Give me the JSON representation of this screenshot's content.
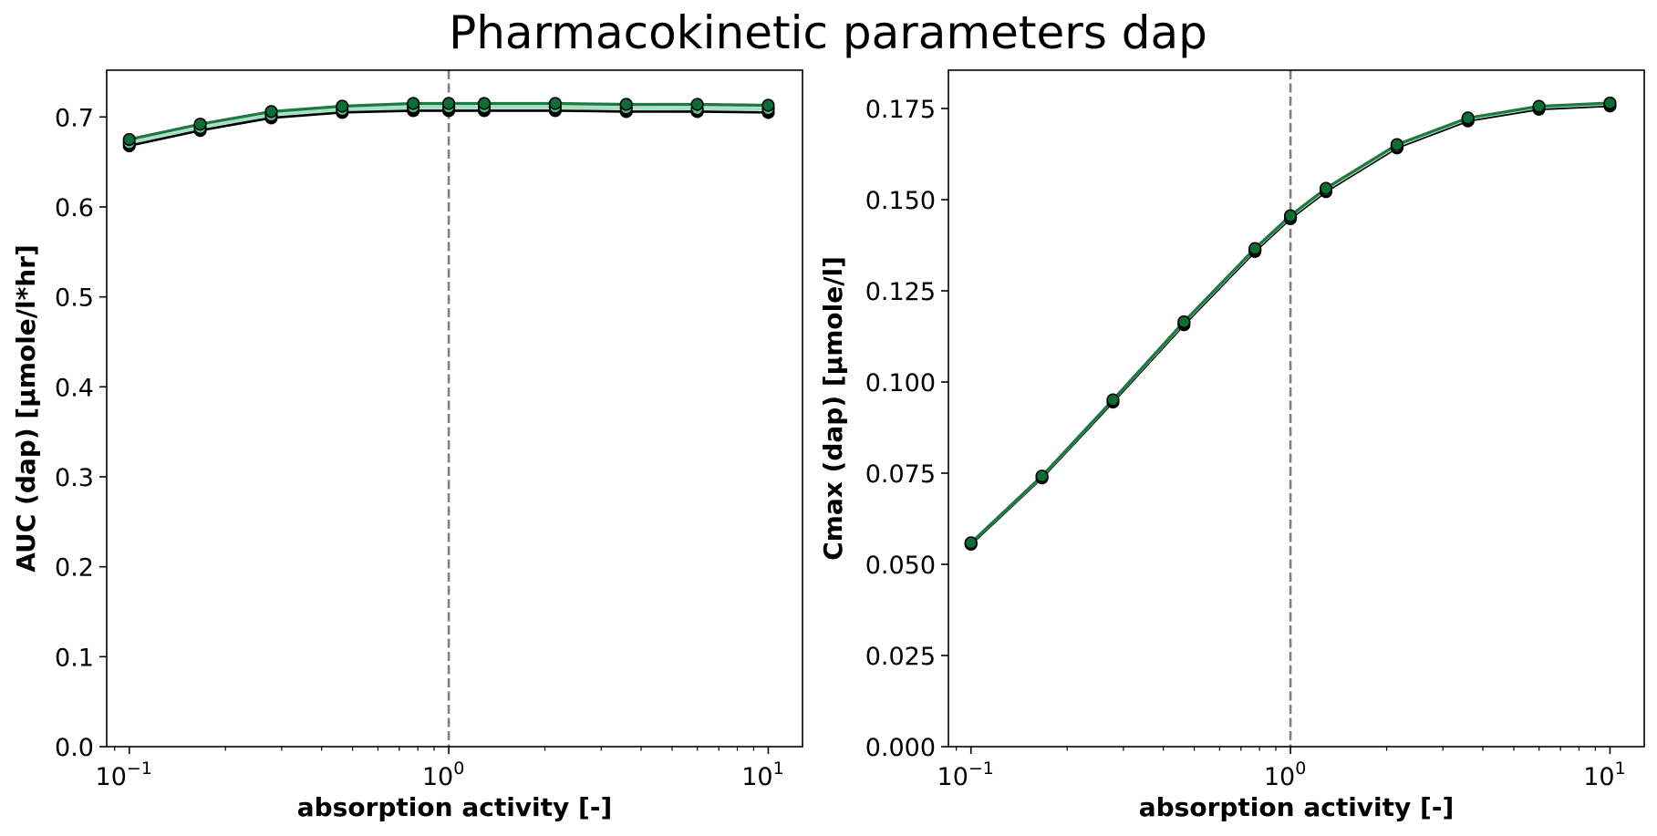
{
  "figure": {
    "title": "Pharmacokinetic parameters dap"
  },
  "chart_data": [
    {
      "type": "line",
      "xscale": "log",
      "x": [
        0.1,
        0.1668,
        0.2783,
        0.4642,
        0.7743,
        1.0,
        1.2915,
        2.1544,
        3.5938,
        5.9948,
        10.0
      ],
      "xlim": [
        0.085,
        12.8
      ],
      "xticks": [
        0.1,
        1,
        10
      ],
      "xtick_labels": [
        {
          "base": "10",
          "exp": "−1"
        },
        {
          "base": "10",
          "exp": "0"
        },
        {
          "base": "10",
          "exp": "1"
        }
      ],
      "ylim": [
        0.0,
        0.752
      ],
      "yticks": [
        "0.0",
        "0.1",
        "0.2",
        "0.3",
        "0.4",
        "0.5",
        "0.6",
        "0.7"
      ],
      "xlabel": "absorption activity [-]",
      "ylabel": "AUC (dap) [µmole/l*hr]",
      "reference_line": {
        "x": 1.0,
        "style": "dashed",
        "color": "#808080"
      },
      "band_color": "#a8ddc5",
      "series": [
        {
          "color": "#000000",
          "values": [
            0.668,
            0.685,
            0.699,
            0.705,
            0.707,
            0.707,
            0.707,
            0.707,
            0.706,
            0.706,
            0.705
          ]
        },
        {
          "color": "#a8ddc5",
          "values": [
            0.671,
            0.688,
            0.702,
            0.708,
            0.711,
            0.711,
            0.711,
            0.711,
            0.71,
            0.709,
            0.709
          ]
        },
        {
          "color": "#1b7a3e",
          "values": [
            0.675,
            0.692,
            0.706,
            0.712,
            0.715,
            0.715,
            0.715,
            0.715,
            0.714,
            0.714,
            0.713
          ]
        }
      ]
    },
    {
      "type": "line",
      "xscale": "log",
      "x": [
        0.1,
        0.1668,
        0.2783,
        0.4642,
        0.7743,
        1.0,
        1.2915,
        2.1544,
        3.5938,
        5.9948,
        10.0
      ],
      "xlim": [
        0.085,
        12.8
      ],
      "xticks": [
        0.1,
        1,
        10
      ],
      "xtick_labels": [
        {
          "base": "10",
          "exp": "−1"
        },
        {
          "base": "10",
          "exp": "0"
        },
        {
          "base": "10",
          "exp": "1"
        }
      ],
      "ylim": [
        0.0,
        0.1855
      ],
      "yticks": [
        "0.000",
        "0.025",
        "0.050",
        "0.075",
        "0.100",
        "0.125",
        "0.150",
        "0.175"
      ],
      "xlabel": "absorption activity [-]",
      "ylabel": "Cmax (dap) [µmole/l]",
      "reference_line": {
        "x": 1.0,
        "style": "dashed",
        "color": "#808080"
      },
      "band_color": "#a8ddc5",
      "series": [
        {
          "color": "#000000",
          "values": [
            0.0555,
            0.0737,
            0.0945,
            0.1157,
            0.1358,
            0.1448,
            0.1522,
            0.1642,
            0.1716,
            0.1748,
            0.1757
          ]
        },
        {
          "color": "#a8ddc5",
          "values": [
            0.0557,
            0.0739,
            0.0948,
            0.1161,
            0.1362,
            0.1452,
            0.1526,
            0.1646,
            0.172,
            0.1752,
            0.1761
          ]
        },
        {
          "color": "#1b7a3e",
          "values": [
            0.0559,
            0.0742,
            0.0951,
            0.1165,
            0.1366,
            0.1456,
            0.1531,
            0.1651,
            0.1724,
            0.1756,
            0.1765
          ]
        }
      ]
    }
  ]
}
